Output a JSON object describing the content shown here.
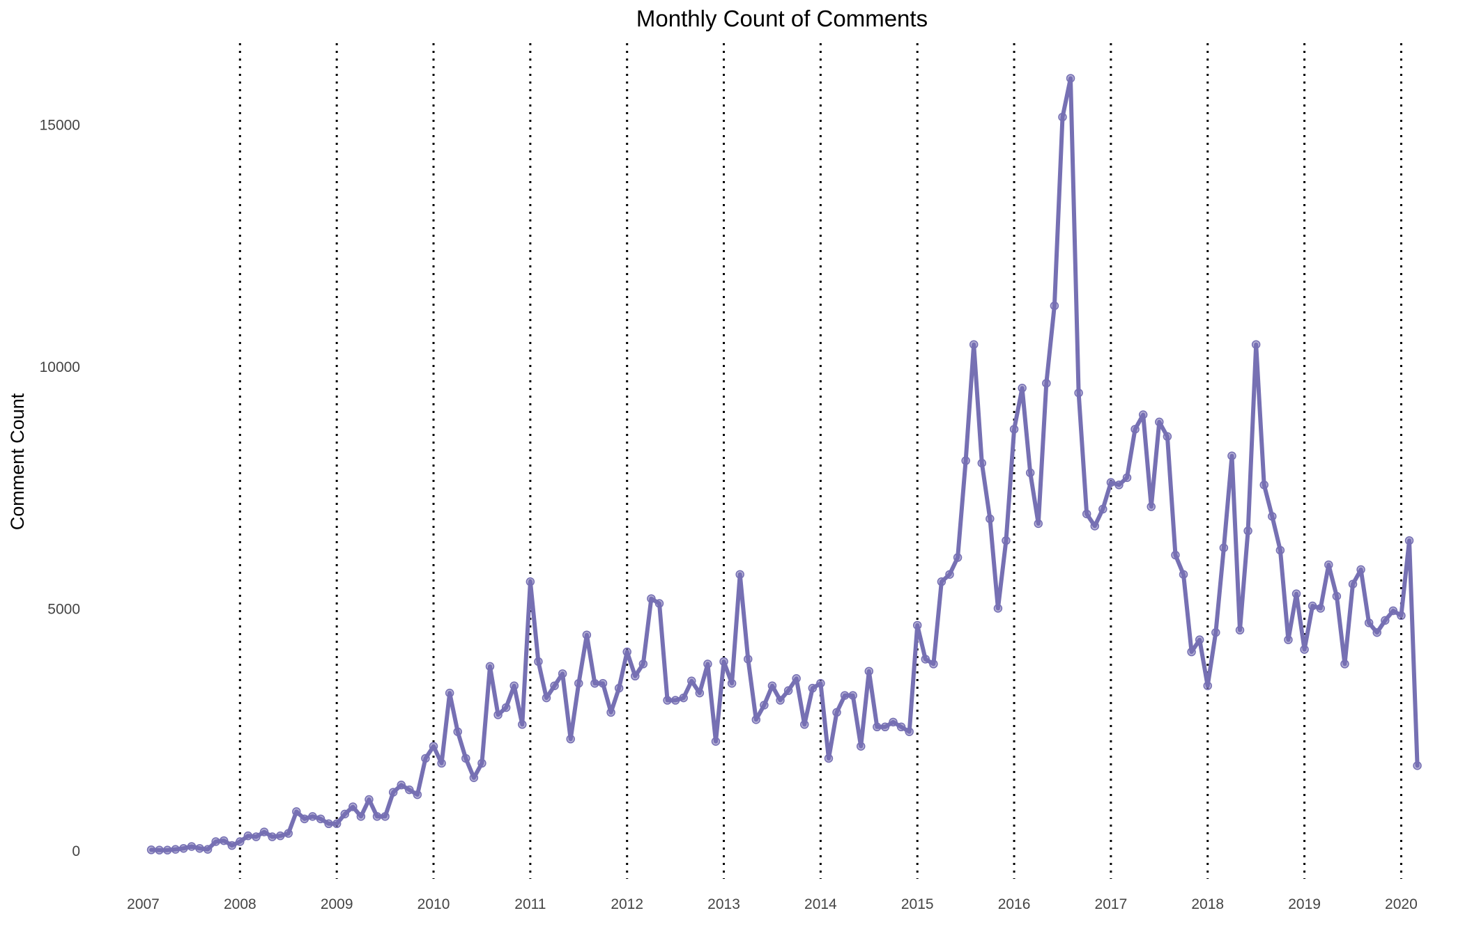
{
  "chart_data": {
    "type": "line",
    "title": "Monthly Count of Comments",
    "xlabel": "",
    "ylabel": "Comment Count",
    "x_ticks": [
      "2007",
      "2008",
      "2009",
      "2010",
      "2011",
      "2012",
      "2013",
      "2014",
      "2015",
      "2016",
      "2017",
      "2018",
      "2019",
      "2020"
    ],
    "y_ticks": [
      "0",
      "5000",
      "10000",
      "15000"
    ],
    "ylim": [
      -700,
      16500
    ],
    "xlim": [
      "2007-01",
      "2020-03"
    ],
    "grid": "dotted vertical lines at each year from 2008 to 2020",
    "legend": "none",
    "color": "#7670b3",
    "series": [
      {
        "x": [
          "2007-02",
          "2007-03",
          "2007-04",
          "2007-05",
          "2007-06",
          "2007-07",
          "2007-08",
          "2007-09",
          "2007-10",
          "2007-11",
          "2007-12",
          "2008-01",
          "2008-02",
          "2008-03",
          "2008-04",
          "2008-05",
          "2008-06",
          "2008-07",
          "2008-08",
          "2008-09",
          "2008-10",
          "2008-11",
          "2008-12",
          "2009-01",
          "2009-02",
          "2009-03",
          "2009-04",
          "2009-05",
          "2009-06",
          "2009-07",
          "2009-08",
          "2009-09",
          "2009-10",
          "2009-11",
          "2009-12",
          "2010-01",
          "2010-02",
          "2010-03",
          "2010-04",
          "2010-05",
          "2010-06",
          "2010-07",
          "2010-08",
          "2010-09",
          "2010-10",
          "2010-11",
          "2010-12",
          "2011-01",
          "2011-02",
          "2011-03",
          "2011-04",
          "2011-05",
          "2011-06",
          "2011-07",
          "2011-08",
          "2011-09",
          "2011-10",
          "2011-11",
          "2011-12",
          "2012-01",
          "2012-02",
          "2012-03",
          "2012-04",
          "2012-05",
          "2012-06",
          "2012-07",
          "2012-08",
          "2012-09",
          "2012-10",
          "2012-11",
          "2012-12",
          "2013-01",
          "2013-02",
          "2013-03",
          "2013-04",
          "2013-05",
          "2013-06",
          "2013-07",
          "2013-08",
          "2013-09",
          "2013-10",
          "2013-11",
          "2013-12",
          "2014-01",
          "2014-02",
          "2014-03",
          "2014-04",
          "2014-05",
          "2014-06",
          "2014-07",
          "2014-08",
          "2014-09",
          "2014-10",
          "2014-11",
          "2014-12",
          "2015-01",
          "2015-02",
          "2015-03",
          "2015-04",
          "2015-05",
          "2015-06",
          "2015-07",
          "2015-08",
          "2015-09",
          "2015-10",
          "2015-11",
          "2015-12",
          "2016-01",
          "2016-02",
          "2016-03",
          "2016-04",
          "2016-05",
          "2016-06",
          "2016-07",
          "2016-08",
          "2016-09",
          "2016-10",
          "2016-11",
          "2016-12",
          "2017-01",
          "2017-02",
          "2017-03",
          "2017-04",
          "2017-05",
          "2017-06",
          "2017-07",
          "2017-08",
          "2017-09",
          "2017-10",
          "2017-11",
          "2017-12",
          "2018-01",
          "2018-02",
          "2018-03",
          "2018-04",
          "2018-05",
          "2018-06",
          "2018-07",
          "2018-08",
          "2018-09",
          "2018-10",
          "2018-11",
          "2018-12",
          "2019-01",
          "2019-02",
          "2019-03",
          "2019-04",
          "2019-05",
          "2019-06",
          "2019-07",
          "2019-08",
          "2019-09",
          "2019-10",
          "2019-11",
          "2019-12",
          "2020-01",
          "2020-02",
          "2020-03"
        ],
        "y": [
          10,
          5,
          5,
          20,
          40,
          80,
          40,
          20,
          180,
          200,
          100,
          180,
          300,
          280,
          380,
          280,
          300,
          350,
          800,
          650,
          700,
          650,
          550,
          550,
          750,
          900,
          700,
          1050,
          700,
          700,
          1200,
          1350,
          1250,
          1150,
          1900,
          2150,
          1800,
          3250,
          2450,
          1900,
          1500,
          1800,
          3800,
          2800,
          2950,
          3400,
          2600,
          5550,
          3900,
          3150,
          3400,
          3650,
          2300,
          3450,
          4450,
          3450,
          3450,
          2850,
          3350,
          4100,
          3600,
          3850,
          5200,
          5100,
          3100,
          3100,
          3150,
          3500,
          3250,
          3850,
          2250,
          3900,
          3450,
          5700,
          3950,
          2700,
          3000,
          3400,
          3100,
          3300,
          3550,
          2600,
          3350,
          3450,
          1900,
          2850,
          3200,
          3200,
          2150,
          3700,
          2550,
          2550,
          2650,
          2550,
          2450,
          4650,
          3950,
          3850,
          5550,
          5700,
          6050,
          8050,
          10450,
          8000,
          6850,
          5000,
          6400,
          8700,
          9550,
          7800,
          6750,
          9650,
          11250,
          15150,
          15950,
          9450,
          6950,
          6700,
          7050,
          7600,
          7550,
          7700,
          8700,
          9000,
          7100,
          8850,
          8550,
          6100,
          5700,
          4100,
          4350,
          3400,
          4500,
          6250,
          8150,
          4550,
          6600,
          10450,
          7550,
          6900,
          6200,
          4350,
          5300,
          4150,
          5050,
          5000,
          5900,
          5250,
          3850,
          5500,
          5800,
          4700,
          4500,
          4750,
          4950,
          4850,
          6400,
          1750
        ]
      }
    ]
  }
}
